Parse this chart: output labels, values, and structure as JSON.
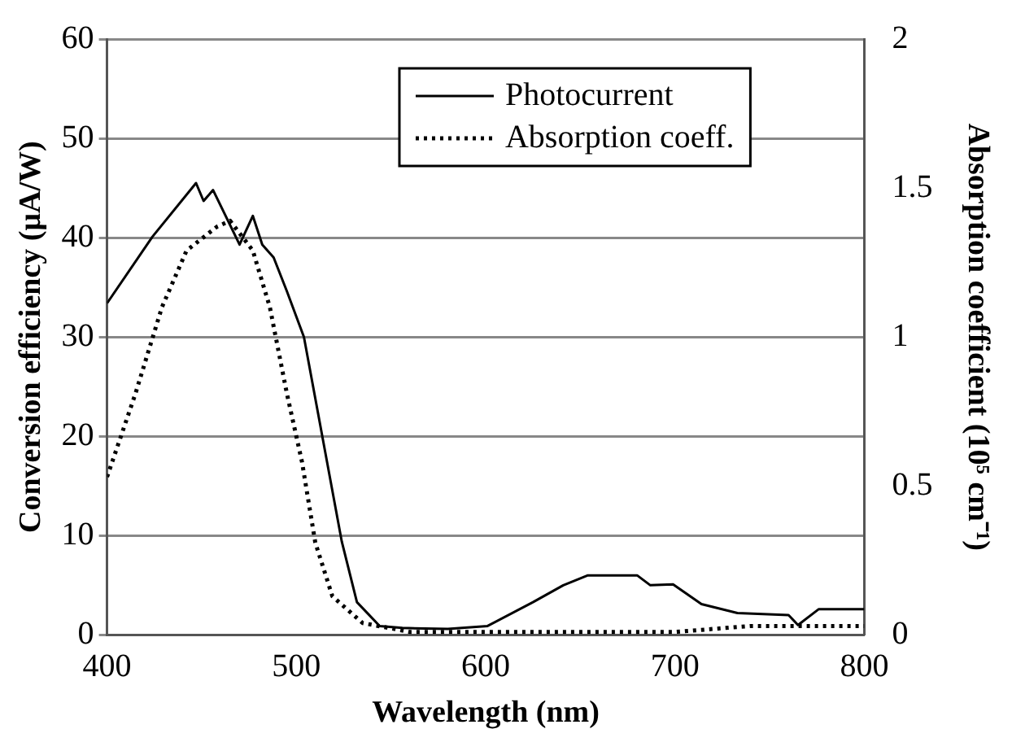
{
  "chart_data": {
    "type": "line",
    "xlabel": "Wavelength (nm)",
    "ylabel": "Conversion efficiency (μA/W)",
    "y2label": "Absorption coefficient (10⁵ cm⁻¹)",
    "xlim": [
      400,
      800
    ],
    "xticks": [
      400,
      500,
      600,
      700,
      800
    ],
    "ylim": [
      0,
      60
    ],
    "yticks": [
      0,
      10,
      20,
      30,
      40,
      50,
      60
    ],
    "y2lim": [
      0,
      2
    ],
    "y2ticks": [
      0,
      0.5,
      1,
      1.5,
      2
    ],
    "grid": "y",
    "legend": "top right",
    "marker": "none",
    "series": [
      {
        "name": "Photocurrent",
        "color": "#000000",
        "line_style": "solid",
        "x": [
          400,
          424,
          447,
          451,
          456,
          470,
          477,
          482,
          488,
          495,
          504,
          514,
          524,
          532,
          544,
          556,
          580,
          601,
          625,
          641,
          654,
          680,
          687,
          699,
          714,
          733,
          760,
          765,
          776,
          800
        ],
        "values": [
          33.4,
          40.1,
          45.5,
          43.7,
          44.8,
          39.3,
          42.2,
          39.3,
          38,
          34.6,
          30,
          19.7,
          9.4,
          3.3,
          0.9,
          0.7,
          0.6,
          0.9,
          3.3,
          5,
          6,
          6,
          5,
          5.1,
          3.1,
          2.2,
          2,
          1,
          2.6,
          2.6
        ]
      },
      {
        "name": "Absorption coeff.",
        "color": "#000000",
        "line_style": "dotted",
        "axis": "y2",
        "x": [
          400,
          415,
          429,
          442,
          458,
          465,
          477,
          486,
          495,
          503,
          510,
          519,
          535,
          560,
          700,
          740,
          800
        ],
        "values": [
          0.53,
          0.81,
          1.1,
          1.29,
          1.37,
          1.39,
          1.29,
          1.1,
          0.81,
          0.58,
          0.31,
          0.13,
          0.04,
          0.01,
          0.01,
          0.03,
          0.03
        ]
      }
    ]
  }
}
